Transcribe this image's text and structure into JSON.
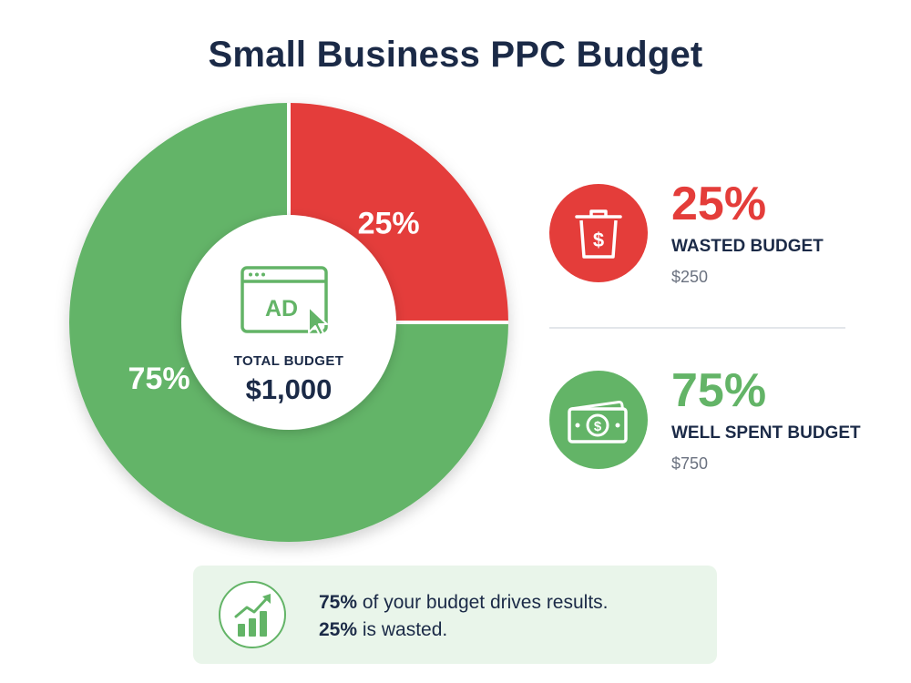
{
  "title": "Small Business PPC Budget",
  "colors": {
    "wasted": "#e43d3a",
    "spent": "#63b467",
    "navy": "#1b2a47",
    "banner_bg": "#e9f5ea"
  },
  "chart_data": {
    "type": "pie",
    "title": "Small Business PPC Budget",
    "labels": [
      "Wasted Budget",
      "Well Spent Budget"
    ],
    "values": [
      25,
      75
    ],
    "data_labels": [
      "25%",
      "75%"
    ],
    "colors": [
      "#e43d3a",
      "#63b467"
    ],
    "donut": true,
    "center": {
      "icon": "ad-browser-cursor-icon",
      "label": "TOTAL BUDGET",
      "value": "$1,000"
    }
  },
  "legend": [
    {
      "percent": "25%",
      "label": "WASTED BUDGET",
      "amount": "$250",
      "icon": "trash-dollar-icon",
      "color": "#e43d3a"
    },
    {
      "percent": "75%",
      "label": "WELL SPENT BUDGET",
      "amount": "$750",
      "icon": "money-bills-icon",
      "color": "#63b467"
    }
  ],
  "banner": {
    "icon": "growth-chart-icon",
    "line1_strong": "75%",
    "line1_rest": " of your budget drives results.",
    "line2_strong": "25%",
    "line2_rest": " is wasted."
  }
}
